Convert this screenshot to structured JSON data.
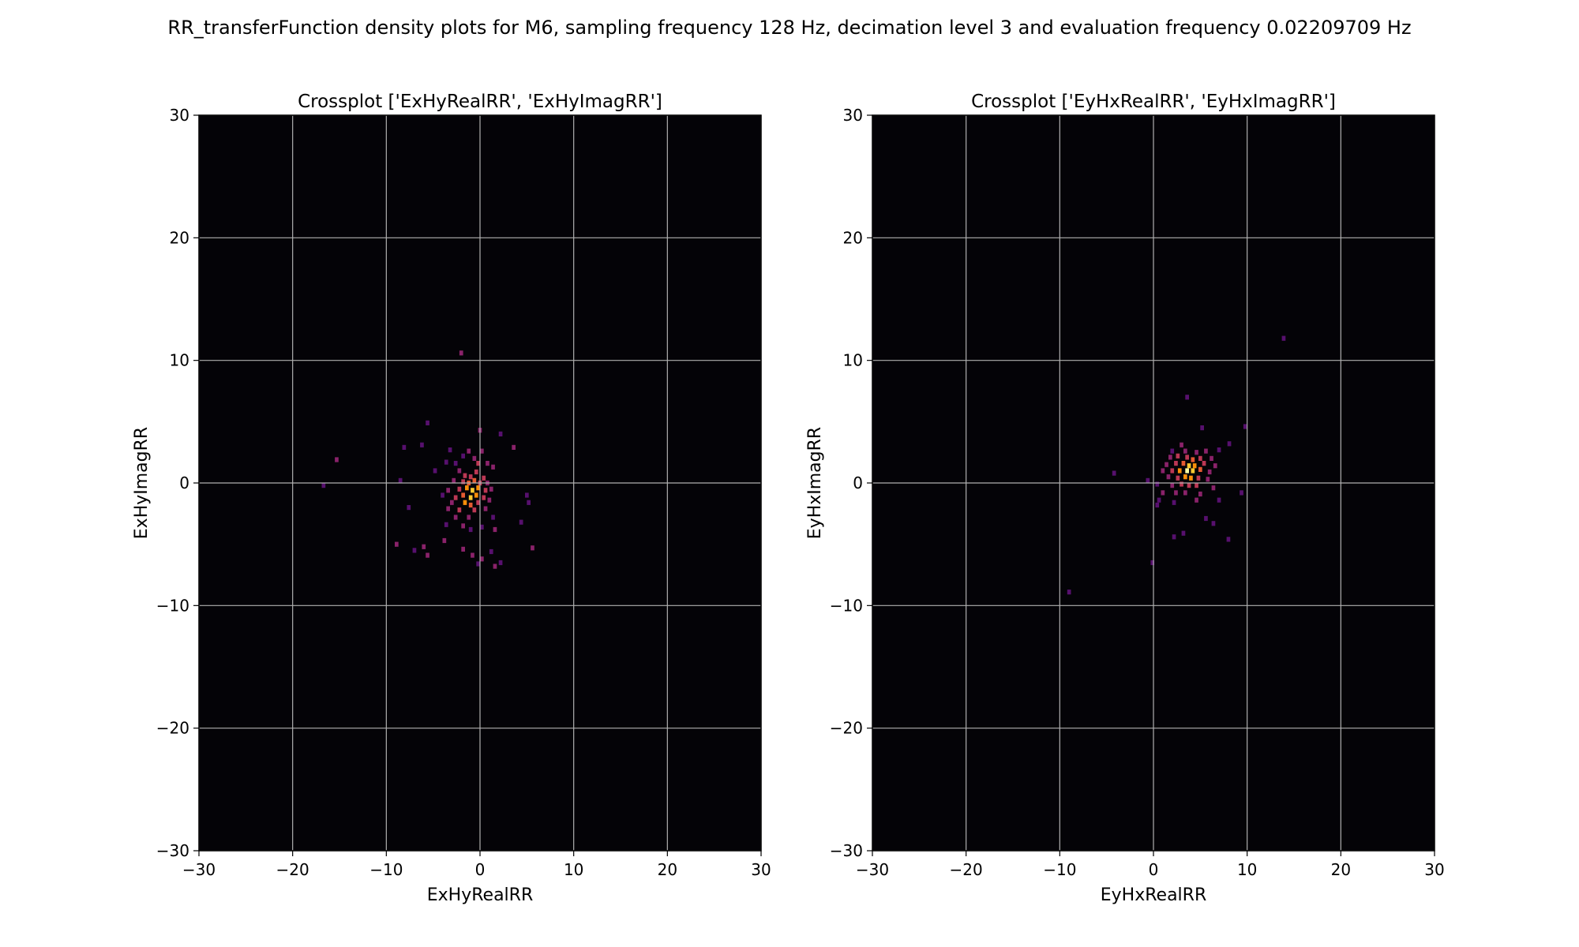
{
  "figure": {
    "title": "RR_transferFunction density plots for M6, sampling frequency 128 Hz, decimation level 3 and evaluation frequency 0.02209709 Hz"
  },
  "colors": {
    "background": "#040307",
    "grid": "#b0b0b0",
    "colormap": [
      "#040307",
      "#2a0b4a",
      "#57106e",
      "#8a226a",
      "#bc3754",
      "#e45a31",
      "#f98e09",
      "#f9c932",
      "#fcffa4"
    ]
  },
  "chart_data": [
    {
      "type": "heatmap",
      "title": "Crossplot ['ExHyRealRR', 'ExHyImagRR']",
      "xlabel": "ExHyRealRR",
      "ylabel": "ExHyImagRR",
      "xlim": [
        -30,
        30
      ],
      "ylim": [
        -30,
        30
      ],
      "xticks": [
        -30,
        -20,
        -10,
        0,
        10,
        20,
        30
      ],
      "yticks": [
        -30,
        -20,
        -10,
        0,
        10,
        20,
        30
      ],
      "grid": true,
      "bin_size": 0.4,
      "cells": [
        [
          -2.0,
          10.6,
          0.35
        ],
        [
          -5.6,
          4.9,
          0.3
        ],
        [
          0.0,
          4.3,
          0.35
        ],
        [
          2.2,
          4.0,
          0.3
        ],
        [
          -8.1,
          2.9,
          0.3
        ],
        [
          -6.2,
          3.1,
          0.25
        ],
        [
          -3.2,
          2.7,
          0.3
        ],
        [
          -1.2,
          2.6,
          0.35
        ],
        [
          0.2,
          2.6,
          0.4
        ],
        [
          3.6,
          2.9,
          0.35
        ],
        [
          -1.8,
          2.2,
          0.3
        ],
        [
          -0.6,
          2.0,
          0.4
        ],
        [
          -15.3,
          1.9,
          0.35
        ],
        [
          -3.6,
          1.7,
          0.3
        ],
        [
          -2.6,
          1.6,
          0.3
        ],
        [
          -0.2,
          1.6,
          0.45
        ],
        [
          0.8,
          1.6,
          0.35
        ],
        [
          1.4,
          1.3,
          0.35
        ],
        [
          -4.8,
          1.0,
          0.3
        ],
        [
          -2.2,
          1.0,
          0.4
        ],
        [
          -1.6,
          0.6,
          0.45
        ],
        [
          -1.0,
          0.5,
          0.55
        ],
        [
          -0.4,
          0.9,
          0.5
        ],
        [
          0.4,
          0.4,
          0.45
        ],
        [
          -8.5,
          0.2,
          0.3
        ],
        [
          -2.8,
          0.2,
          0.35
        ],
        [
          -1.8,
          0.1,
          0.55
        ],
        [
          -1.2,
          0.0,
          0.65
        ],
        [
          -0.6,
          0.2,
          0.6
        ],
        [
          0.0,
          0.0,
          0.55
        ],
        [
          0.8,
          0.0,
          0.4
        ],
        [
          -16.7,
          -0.2,
          0.3
        ],
        [
          -3.4,
          -0.6,
          0.35
        ],
        [
          -2.2,
          -0.5,
          0.55
        ],
        [
          -1.4,
          -0.4,
          0.75
        ],
        [
          -0.8,
          -0.6,
          0.9
        ],
        [
          -0.2,
          -0.4,
          0.8
        ],
        [
          0.6,
          -0.6,
          0.5
        ],
        [
          1.2,
          -0.5,
          0.35
        ],
        [
          -4.0,
          -1.0,
          0.3
        ],
        [
          -2.6,
          -1.2,
          0.45
        ],
        [
          -1.8,
          -1.0,
          0.65
        ],
        [
          -1.0,
          -1.2,
          0.85
        ],
        [
          -0.4,
          -1.0,
          0.7
        ],
        [
          0.4,
          -1.2,
          0.5
        ],
        [
          5.0,
          -1.0,
          0.3
        ],
        [
          -3.0,
          -1.6,
          0.35
        ],
        [
          -1.6,
          -1.6,
          0.8
        ],
        [
          -1.0,
          -1.8,
          0.6
        ],
        [
          -0.2,
          -1.6,
          0.55
        ],
        [
          1.0,
          -1.4,
          0.4
        ],
        [
          5.2,
          -1.6,
          0.3
        ],
        [
          -7.6,
          -2.0,
          0.3
        ],
        [
          -3.4,
          -2.1,
          0.35
        ],
        [
          -2.2,
          -2.2,
          0.45
        ],
        [
          -0.6,
          -2.2,
          0.45
        ],
        [
          0.6,
          -2.1,
          0.35
        ],
        [
          -2.6,
          -2.8,
          0.35
        ],
        [
          -1.2,
          -2.8,
          0.4
        ],
        [
          1.4,
          -2.8,
          0.3
        ],
        [
          -3.6,
          -3.4,
          0.3
        ],
        [
          -1.8,
          -3.5,
          0.35
        ],
        [
          0.2,
          -3.6,
          0.3
        ],
        [
          4.4,
          -3.2,
          0.3
        ],
        [
          -1.0,
          -3.8,
          0.3
        ],
        [
          1.6,
          -3.8,
          0.35
        ],
        [
          -3.8,
          -4.7,
          0.35
        ],
        [
          -8.9,
          -5.0,
          0.35
        ],
        [
          -7.0,
          -5.5,
          0.3
        ],
        [
          -6.0,
          -5.2,
          0.35
        ],
        [
          -1.8,
          -5.4,
          0.35
        ],
        [
          -5.6,
          -5.9,
          0.35
        ],
        [
          -0.8,
          -5.9,
          0.35
        ],
        [
          0.2,
          -6.2,
          0.35
        ],
        [
          1.2,
          -5.6,
          0.3
        ],
        [
          2.2,
          -6.5,
          0.3
        ],
        [
          5.6,
          -5.3,
          0.35
        ],
        [
          -0.2,
          -6.6,
          0.3
        ],
        [
          1.6,
          -6.8,
          0.35
        ]
      ]
    },
    {
      "type": "heatmap",
      "title": "Crossplot ['EyHxRealRR', 'EyHxImagRR']",
      "xlabel": "EyHxRealRR",
      "ylabel": "EyHxImagRR",
      "xlim": [
        -30,
        30
      ],
      "ylim": [
        -30,
        30
      ],
      "xticks": [
        -30,
        -20,
        -10,
        0,
        10,
        20,
        30
      ],
      "yticks": [
        -30,
        -20,
        -10,
        0,
        10,
        20,
        30
      ],
      "grid": true,
      "bin_size": 0.4,
      "cells": [
        [
          13.9,
          11.8,
          0.25
        ],
        [
          3.6,
          7.0,
          0.3
        ],
        [
          9.8,
          4.6,
          0.3
        ],
        [
          5.2,
          4.5,
          0.3
        ],
        [
          3.0,
          3.1,
          0.35
        ],
        [
          8.1,
          3.2,
          0.3
        ],
        [
          2.0,
          2.6,
          0.3
        ],
        [
          3.4,
          2.6,
          0.35
        ],
        [
          4.6,
          2.5,
          0.4
        ],
        [
          5.6,
          2.6,
          0.35
        ],
        [
          7.0,
          2.7,
          0.3
        ],
        [
          1.8,
          2.1,
          0.35
        ],
        [
          2.6,
          2.2,
          0.45
        ],
        [
          3.6,
          2.1,
          0.55
        ],
        [
          4.2,
          1.9,
          0.6
        ],
        [
          5.0,
          2.0,
          0.5
        ],
        [
          6.2,
          2.0,
          0.4
        ],
        [
          1.4,
          1.5,
          0.4
        ],
        [
          2.4,
          1.6,
          0.5
        ],
        [
          3.2,
          1.6,
          0.65
        ],
        [
          3.8,
          1.4,
          0.85
        ],
        [
          4.4,
          1.4,
          0.7
        ],
        [
          5.4,
          1.6,
          0.45
        ],
        [
          6.6,
          1.4,
          0.35
        ],
        [
          1.0,
          1.0,
          0.35
        ],
        [
          2.0,
          1.0,
          0.5
        ],
        [
          2.8,
          1.0,
          0.7
        ],
        [
          3.6,
          1.0,
          1.0
        ],
        [
          4.2,
          1.0,
          0.9
        ],
        [
          5.0,
          1.1,
          0.6
        ],
        [
          6.0,
          0.9,
          0.4
        ],
        [
          -4.2,
          0.8,
          0.3
        ],
        [
          1.6,
          0.5,
          0.4
        ],
        [
          2.6,
          0.4,
          0.55
        ],
        [
          3.4,
          0.5,
          0.7
        ],
        [
          4.0,
          0.4,
          0.75
        ],
        [
          4.8,
          0.4,
          0.55
        ],
        [
          5.8,
          0.3,
          0.4
        ],
        [
          0.4,
          -0.1,
          0.3
        ],
        [
          -0.6,
          0.2,
          0.3
        ],
        [
          2.0,
          -0.2,
          0.4
        ],
        [
          3.0,
          -0.1,
          0.5
        ],
        [
          3.8,
          -0.2,
          0.55
        ],
        [
          4.6,
          -0.2,
          0.45
        ],
        [
          6.4,
          -0.4,
          0.35
        ],
        [
          1.0,
          -0.8,
          0.35
        ],
        [
          2.4,
          -0.8,
          0.4
        ],
        [
          3.4,
          -0.8,
          0.4
        ],
        [
          5.0,
          -0.9,
          0.35
        ],
        [
          9.4,
          -0.8,
          0.3
        ],
        [
          0.6,
          -1.4,
          0.3
        ],
        [
          4.6,
          -1.4,
          0.35
        ],
        [
          7.0,
          -1.4,
          0.3
        ],
        [
          0.4,
          -1.8,
          0.3
        ],
        [
          2.2,
          -1.6,
          0.3
        ],
        [
          5.6,
          -2.9,
          0.3
        ],
        [
          6.4,
          -3.3,
          0.3
        ],
        [
          8.0,
          -4.6,
          0.3
        ],
        [
          2.2,
          -4.4,
          0.3
        ],
        [
          3.2,
          -4.1,
          0.3
        ],
        [
          -0.1,
          -6.5,
          0.3
        ],
        [
          -9.0,
          -8.9,
          0.3
        ]
      ]
    }
  ]
}
